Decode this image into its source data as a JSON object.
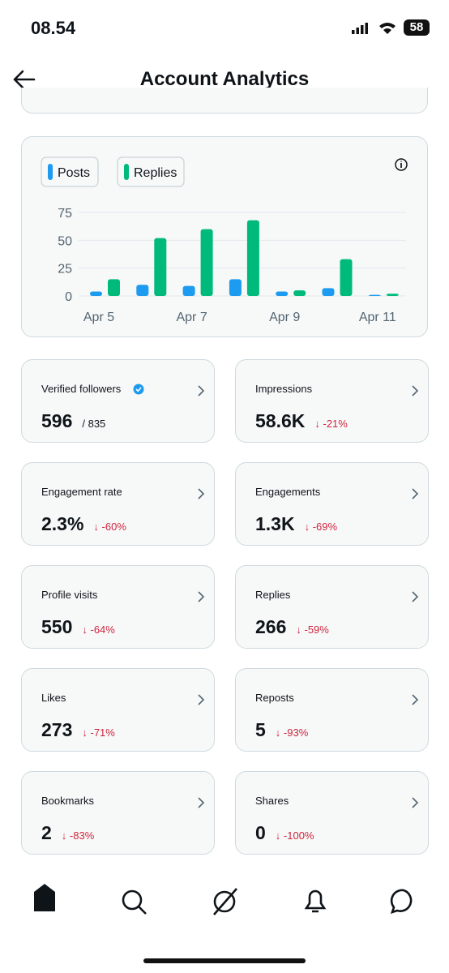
{
  "status_bar": {
    "time": "08.54",
    "battery": "58"
  },
  "header": {
    "title": "Account Analytics"
  },
  "chart": {
    "type": "bar",
    "categories": [
      "Apr 5",
      null,
      "Apr 7",
      null,
      "Apr 9",
      null,
      "Apr 11"
    ],
    "series": [
      {
        "name": "Posts",
        "color": "#1d9bf0",
        "values": [
          4,
          10,
          9,
          15,
          4,
          7,
          1
        ]
      },
      {
        "name": "Replies",
        "color": "#00ba7c",
        "values": [
          15,
          52,
          60,
          68,
          5,
          33,
          2
        ]
      }
    ],
    "ylim": [
      0,
      75
    ],
    "yticks": [
      0,
      25,
      50,
      75
    ],
    "grid": true
  },
  "cards": [
    {
      "label": "Verified followers",
      "value": "596",
      "detail": "/ 835"
    },
    {
      "label": "Impressions",
      "value": "58.6K",
      "detail": "↓ -21%"
    },
    {
      "label": "Engagement rate",
      "value": "2.3%",
      "detail": "↓ -60%"
    },
    {
      "label": "Engagements",
      "value": "1.3K",
      "detail": "↓ -69%"
    },
    {
      "label": "Profile visits",
      "value": "550",
      "detail": "↓ -64%"
    },
    {
      "label": "Replies",
      "value": "266",
      "detail": "↓ -59%"
    },
    {
      "label": "Likes",
      "value": "273",
      "detail": "↓ -71%"
    },
    {
      "label": "Reposts",
      "value": "5",
      "detail": "↓ -93%"
    },
    {
      "label": "Bookmarks",
      "value": "2",
      "detail": "↓ -83%"
    },
    {
      "label": "Shares",
      "value": "0",
      "detail": "↓ -100%"
    }
  ]
}
